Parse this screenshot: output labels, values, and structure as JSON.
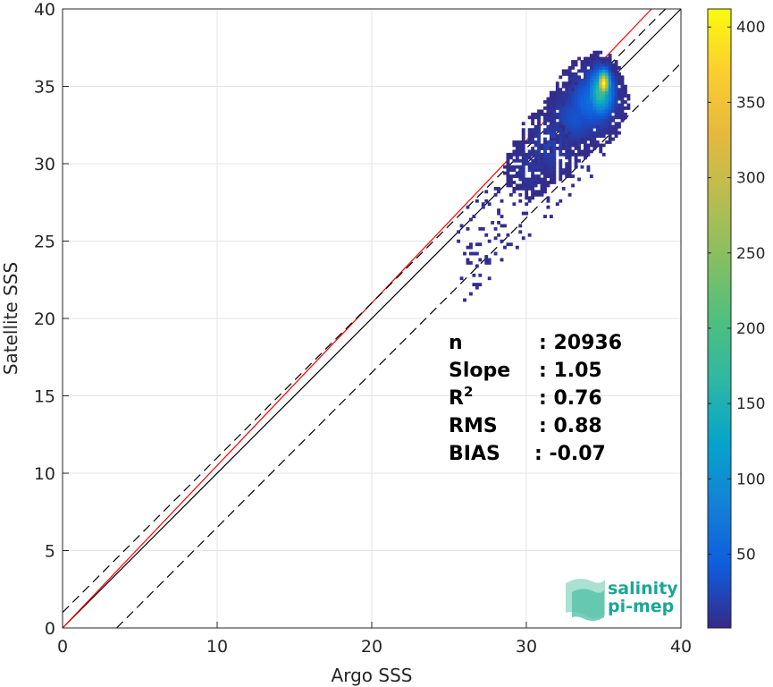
{
  "chart_data": {
    "type": "heatmap",
    "xlabel": "Argo SSS",
    "ylabel": "Satellite SSS",
    "xlim": [
      0,
      40
    ],
    "ylim": [
      0,
      40
    ],
    "xticks": [
      "0",
      "10",
      "20",
      "30",
      "40"
    ],
    "yticks": [
      "0",
      "5",
      "10",
      "15",
      "20",
      "25",
      "30",
      "35",
      "40"
    ],
    "grid": true,
    "colorbar": {
      "range": [
        1,
        412
      ],
      "ticks": [
        "50",
        "100",
        "150",
        "200",
        "250",
        "300",
        "350",
        "400"
      ],
      "colormap": "parula"
    },
    "density_clusters": [
      {
        "x": 35.0,
        "y": 35.2,
        "count": 412,
        "sx": 0.25,
        "sy": 0.5
      },
      {
        "x": 34.8,
        "y": 34.6,
        "count": 180,
        "sx": 0.5,
        "sy": 0.9
      },
      {
        "x": 34.2,
        "y": 34.0,
        "count": 60,
        "sx": 0.9,
        "sy": 1.1
      },
      {
        "x": 33.2,
        "y": 33.0,
        "count": 35,
        "sx": 0.9,
        "sy": 1.0
      },
      {
        "x": 31.5,
        "y": 31.2,
        "count": 20,
        "sx": 0.9,
        "sy": 1.1
      },
      {
        "x": 30.2,
        "y": 29.8,
        "count": 12,
        "sx": 0.8,
        "sy": 1.0
      }
    ],
    "reference_lines": [
      {
        "name": "1:1",
        "slope": 1,
        "intercept": 0,
        "style": "solid",
        "color": "#000000"
      },
      {
        "name": "regression",
        "slope": 1.05,
        "intercept": 0,
        "style": "solid",
        "color": "#ff0000"
      },
      {
        "name": "upper",
        "slope": 1,
        "intercept": 1,
        "style": "dashed",
        "color": "#000000"
      },
      {
        "name": "lower",
        "slope": 1,
        "intercept": -3.5,
        "style": "dashed",
        "color": "#000000"
      }
    ],
    "stats": [
      {
        "label": "n",
        "value": ": 20936"
      },
      {
        "label": "Slope",
        "value": ": 1.05"
      },
      {
        "label": "R",
        "sup": "2",
        "value": ": 0.76"
      },
      {
        "label": "RMS",
        "value": ": 0.88"
      },
      {
        "label": "BIAS",
        "value": ": -0.07"
      }
    ]
  },
  "logo": {
    "line1": "salinity",
    "line2": "pi-mep"
  },
  "colors": {
    "regression": "#ff0000",
    "grid": "#e5e5e5",
    "logo": "#1aa796"
  }
}
